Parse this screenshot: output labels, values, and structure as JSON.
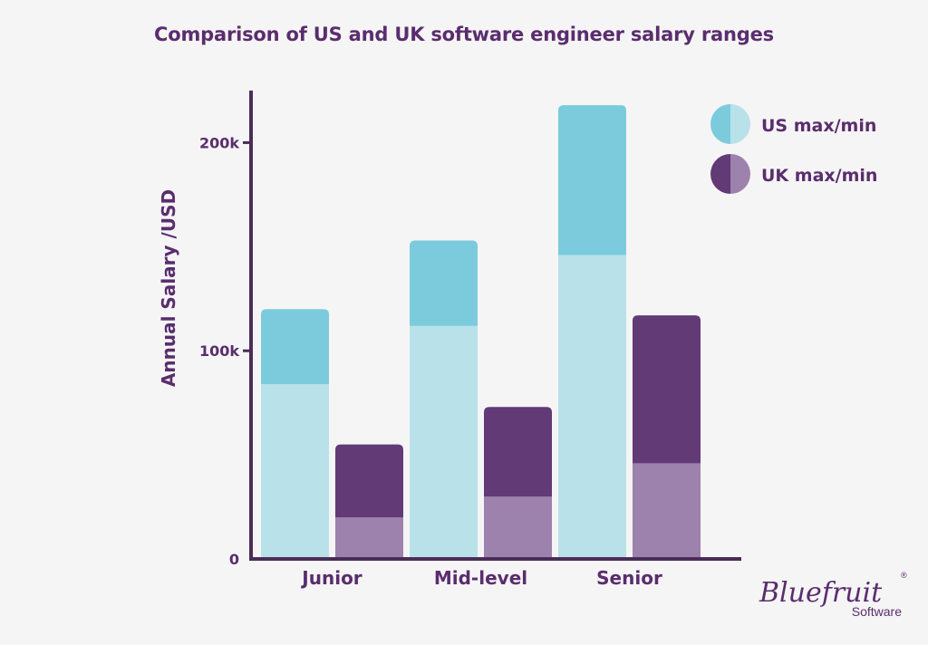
{
  "chart_data": {
    "type": "bar",
    "title": "Comparison of US and UK software engineer salary ranges",
    "xlabel": "",
    "ylabel": "Annual Salary /USD",
    "categories": [
      "Junior",
      "Mid-level",
      "Senior"
    ],
    "ylim": [
      0,
      225000
    ],
    "yticks": [
      0,
      100000,
      200000
    ],
    "ytick_labels": [
      "0",
      "100k",
      "200k"
    ],
    "grid": false,
    "legend_position": "top-right",
    "series": [
      {
        "name": "US max/min",
        "min": [
          84000,
          112000,
          146000
        ],
        "max": [
          120000,
          153000,
          218000
        ],
        "color_max": "#7bcbdc",
        "color_min": "#b9e1ea"
      },
      {
        "name": "UK max/min",
        "min": [
          20000,
          30000,
          46000
        ],
        "max": [
          55000,
          73000,
          117000
        ],
        "color_max": "#623a76",
        "color_min": "#9c82ad"
      }
    ]
  },
  "brand": {
    "name": "Bluefruit",
    "sub": "Software",
    "reg": "®"
  },
  "colors": {
    "axis": "#4a2d57",
    "text": "#5a2d6e",
    "background": "#f5f5f5"
  }
}
